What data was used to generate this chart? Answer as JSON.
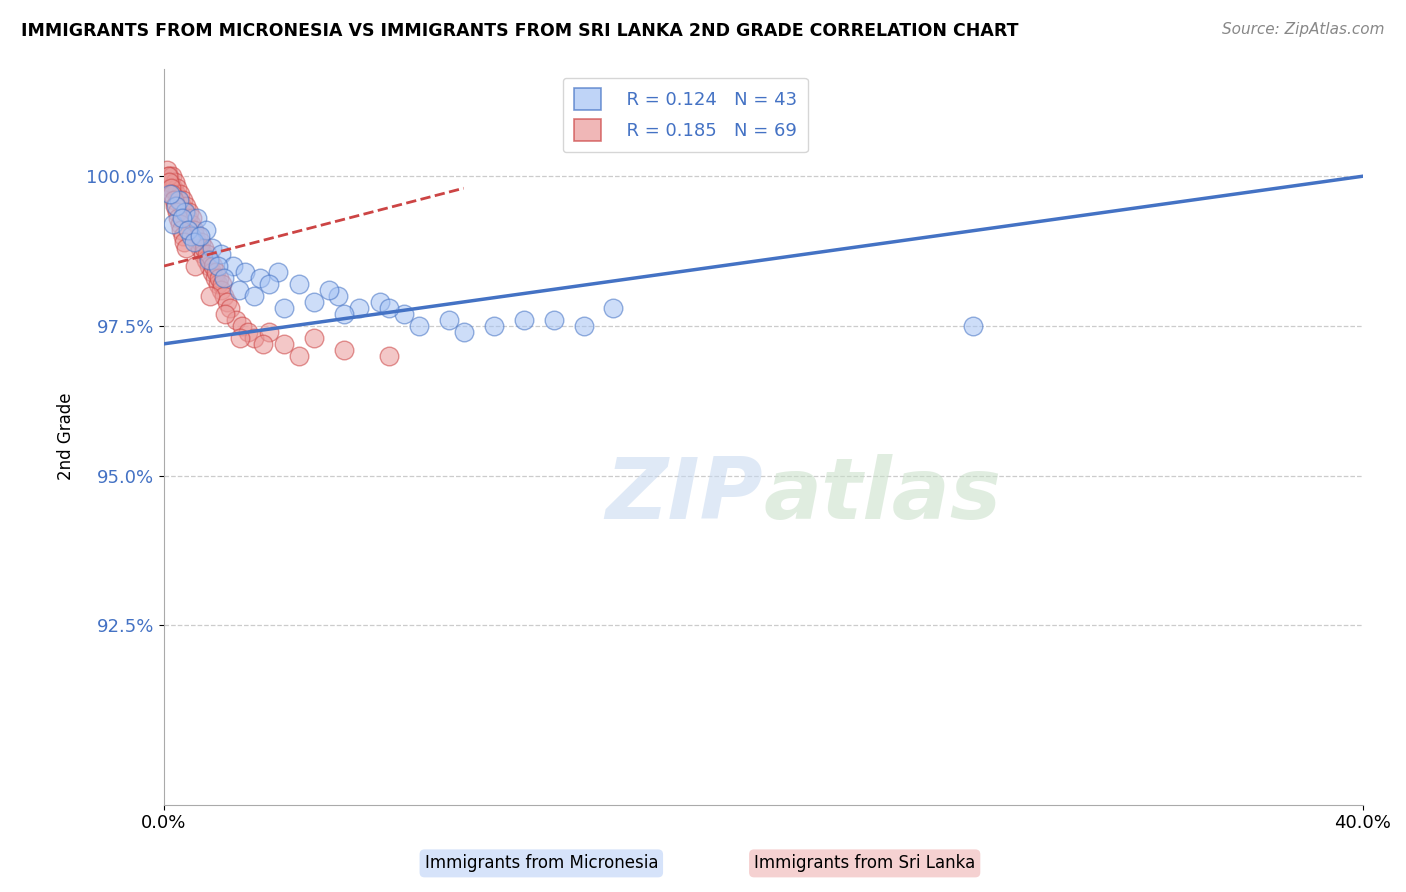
{
  "title": "IMMIGRANTS FROM MICRONESIA VS IMMIGRANTS FROM SRI LANKA 2ND GRADE CORRELATION CHART",
  "source": "Source: ZipAtlas.com",
  "ylabel": "2nd Grade",
  "xlim": [
    0.0,
    40.0
  ],
  "ylim": [
    89.5,
    101.8
  ],
  "yticks": [
    92.5,
    95.0,
    97.5,
    100.0
  ],
  "ytick_labels": [
    "92.5%",
    "95.0%",
    "97.5%",
    "100.0%"
  ],
  "legend_R1": "R = 0.124",
  "legend_N1": "N = 43",
  "legend_R2": "R = 0.185",
  "legend_N2": "N = 69",
  "blue_color": "#a4c2f4",
  "pink_color": "#ea9999",
  "trend_blue": "#4472c4",
  "trend_pink": "#cc4444",
  "watermark": "ZIPatlas",
  "blue_trend_x": [
    0.0,
    40.0
  ],
  "blue_trend_y": [
    97.2,
    100.0
  ],
  "pink_trend_x": [
    0.0,
    10.0
  ],
  "pink_trend_y": [
    98.5,
    99.8
  ],
  "blue_scatter_x": [
    0.3,
    0.5,
    0.7,
    0.9,
    1.1,
    1.4,
    1.6,
    1.9,
    2.3,
    2.7,
    3.2,
    3.8,
    4.5,
    5.0,
    5.8,
    6.5,
    7.2,
    8.0,
    9.5,
    11.0,
    13.0,
    15.0,
    0.4,
    0.6,
    0.8,
    1.0,
    1.2,
    1.5,
    1.8,
    2.0,
    2.5,
    3.0,
    3.5,
    4.0,
    5.5,
    6.0,
    7.5,
    8.5,
    10.0,
    12.0,
    14.0,
    27.0,
    0.2
  ],
  "blue_scatter_y": [
    99.2,
    99.6,
    99.4,
    99.0,
    99.3,
    99.1,
    98.8,
    98.7,
    98.5,
    98.4,
    98.3,
    98.4,
    98.2,
    97.9,
    98.0,
    97.8,
    97.9,
    97.7,
    97.6,
    97.5,
    97.6,
    97.8,
    99.5,
    99.3,
    99.1,
    98.9,
    99.0,
    98.6,
    98.5,
    98.3,
    98.1,
    98.0,
    98.2,
    97.8,
    98.1,
    97.7,
    97.8,
    97.5,
    97.4,
    97.6,
    97.5,
    97.5,
    99.7
  ],
  "pink_scatter_x": [
    0.1,
    0.15,
    0.2,
    0.25,
    0.3,
    0.35,
    0.4,
    0.45,
    0.5,
    0.55,
    0.6,
    0.65,
    0.7,
    0.75,
    0.8,
    0.85,
    0.9,
    0.95,
    1.0,
    1.05,
    1.1,
    1.15,
    1.2,
    1.25,
    1.3,
    1.35,
    1.4,
    1.45,
    1.5,
    1.55,
    1.6,
    1.65,
    1.7,
    1.75,
    1.8,
    1.85,
    1.9,
    1.95,
    2.0,
    2.1,
    2.2,
    2.4,
    2.6,
    2.8,
    3.0,
    3.5,
    4.0,
    5.0,
    6.0,
    7.5,
    0.12,
    0.18,
    0.22,
    0.28,
    0.32,
    0.38,
    0.42,
    0.48,
    0.52,
    0.58,
    0.62,
    0.68,
    0.72,
    1.05,
    1.55,
    2.05,
    2.55,
    3.3,
    4.5
  ],
  "pink_scatter_y": [
    100.1,
    100.0,
    99.9,
    100.0,
    99.8,
    99.9,
    99.7,
    99.8,
    99.6,
    99.7,
    99.5,
    99.6,
    99.4,
    99.5,
    99.3,
    99.4,
    99.2,
    99.3,
    99.1,
    99.0,
    98.9,
    99.0,
    98.8,
    98.9,
    98.7,
    98.8,
    98.6,
    98.7,
    98.5,
    98.6,
    98.4,
    98.5,
    98.3,
    98.4,
    98.2,
    98.3,
    98.1,
    98.2,
    98.0,
    97.9,
    97.8,
    97.6,
    97.5,
    97.4,
    97.3,
    97.4,
    97.2,
    97.3,
    97.1,
    97.0,
    100.0,
    99.9,
    99.8,
    99.7,
    99.6,
    99.5,
    99.4,
    99.3,
    99.2,
    99.1,
    99.0,
    98.9,
    98.8,
    98.5,
    98.0,
    97.7,
    97.3,
    97.2,
    97.0
  ]
}
